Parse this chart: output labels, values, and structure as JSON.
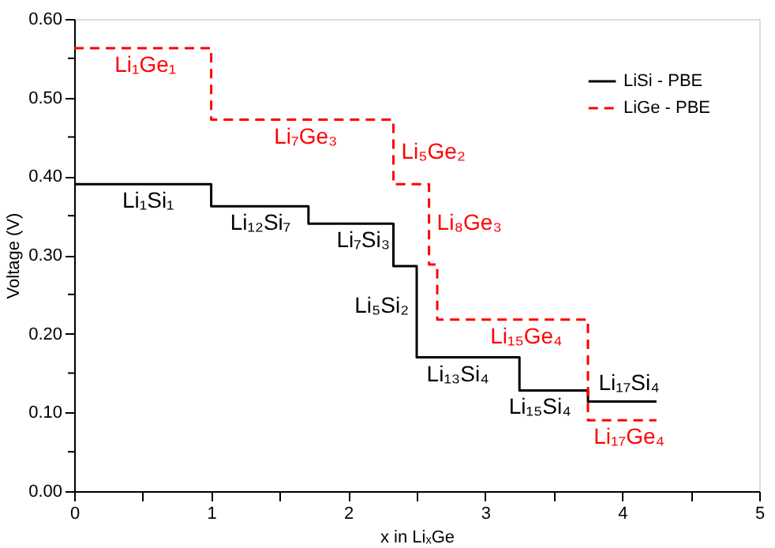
{
  "chart_data": {
    "type": "step",
    "xlabel": "x in LiₓGe",
    "ylabel": "Voltage (V)",
    "xlim": [
      0,
      5
    ],
    "ylim": [
      0,
      0.6
    ],
    "xticks": [
      0,
      {
        "value": 0.5,
        "label": null
      },
      1,
      {
        "value": 1.5,
        "label": null
      },
      2,
      {
        "value": 2.5,
        "label": null
      },
      3,
      {
        "value": 3.5,
        "label": null
      },
      4,
      {
        "value": 4.5,
        "label": null
      },
      5
    ],
    "yticks": [
      {
        "value": 0,
        "label": "0.00"
      },
      {
        "value": 0.05,
        "label": null
      },
      {
        "value": 0.1,
        "label": "0.10"
      },
      {
        "value": 0.15,
        "label": null
      },
      {
        "value": 0.2,
        "label": "0.20"
      },
      {
        "value": 0.25,
        "label": null
      },
      {
        "value": 0.3,
        "label": "0.30"
      },
      {
        "value": 0.35,
        "label": null
      },
      {
        "value": 0.4,
        "label": "0.40"
      },
      {
        "value": 0.45,
        "label": null
      },
      {
        "value": 0.5,
        "label": "0.50"
      },
      {
        "value": 0.55,
        "label": null
      },
      {
        "value": 0.6,
        "label": "0.60"
      }
    ],
    "grid": false,
    "legend": "top right",
    "marker": "none",
    "series": [
      {
        "name": "LiSi - PBE",
        "color": "#000000",
        "line_style": "solid",
        "x": [
          0,
          1,
          1.71,
          2.33,
          2.5,
          3.25,
          3.75,
          4.25
        ],
        "values": [
          0.39,
          0.362,
          0.34,
          0.286,
          0.17,
          0.128,
          0.114,
          0.114
        ]
      },
      {
        "name": "LiGe - PBE",
        "color": "#ff0000",
        "line_style": "dashed",
        "x": [
          0,
          1,
          2.33,
          2.59,
          2.65,
          3.75,
          4.25
        ],
        "values": [
          0.563,
          0.472,
          0.39,
          0.288,
          0.218,
          0.09,
          0.09
        ]
      }
    ],
    "annotations": [
      {
        "text": "Li₁Si₁",
        "x": 0.54,
        "y": 0.39
      },
      {
        "text": "Li₁₂Si₇",
        "x": 1.36,
        "y": 0.362
      },
      {
        "text": "Li₇Si₃",
        "x": 2.11,
        "y": 0.34
      },
      {
        "text": "Li₅Si₂",
        "x": 2.5,
        "y": 0.235
      },
      {
        "text": "Li₁₃Si₄",
        "x": 2.8,
        "y": 0.17
      },
      {
        "text": "Li₁₅Si₄",
        "x": 3.4,
        "y": 0.128
      },
      {
        "text": "Li₁₇Si₄",
        "x": 4.05,
        "y": 0.114
      },
      {
        "text": "Li₁Ge₁",
        "x": 0.52,
        "y": 0.563
      },
      {
        "text": "Li₇Ge₃",
        "x": 1.69,
        "y": 0.472
      },
      {
        "text": "Li₅Ge₂",
        "x": 2.33,
        "y": 0.43
      },
      {
        "text": "Li₈Ge₃",
        "x": 2.59,
        "y": 0.34
      },
      {
        "text": "Li₁₅Ge₄",
        "x": 3.3,
        "y": 0.218
      },
      {
        "text": "Li₁₇Ge₄",
        "x": 4.05,
        "y": 0.09
      }
    ]
  }
}
